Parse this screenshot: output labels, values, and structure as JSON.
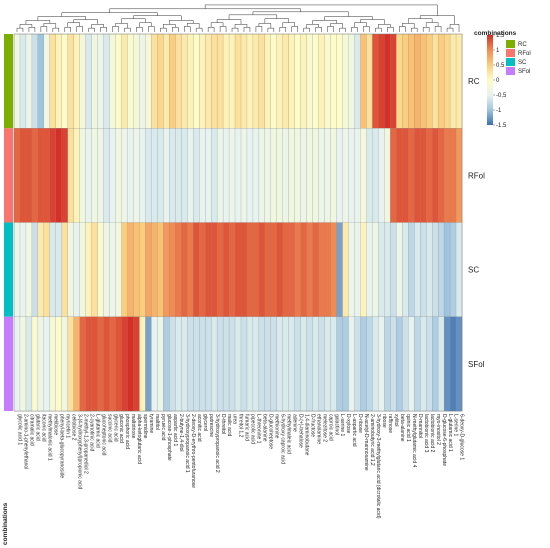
{
  "chart_data": {
    "type": "heatmap",
    "annotation_title": "combinations",
    "legend_title": "combinations",
    "rows": [
      "RC",
      "RFol",
      "SC",
      "SFol"
    ],
    "row_colors": {
      "RC": "#7cae00",
      "RFol": "#f8766d",
      "SC": "#00bfc4",
      "SFol": "#c77cff"
    },
    "colorscale": [
      "#3d6fb0",
      "#9fc4de",
      "#e8f3f0",
      "#fdfcc8",
      "#fbce7d",
      "#f08b52",
      "#d62f27"
    ],
    "zlim": [
      -1.5,
      1.5
    ],
    "colorbar_ticks": [
      "1.5",
      "1",
      "0.5",
      "0",
      "-0.5",
      "-1",
      "-1.5"
    ],
    "dendrogram": "top",
    "columns": [
      "glycolic acid 1",
      "2-amino-1-phenylethanol",
      "citramalic acid",
      "glutaric acid",
      "itaconic acid",
      "methylmalonic acid 1",
      "melibiose",
      "phenyl-beta-glucopyranoside",
      "myricetin 1",
      "cellobiose 2",
      "3-(4-hydroxyphenyl)propionic acid",
      "2-methyl-1,3-propanediol 2",
      "2-cyanotinic acid",
      "L-glutamic acid",
      "glucoheptonic acid",
      "succinic acid",
      "glyceric acid",
      "gluconic acid",
      "phosphoric acid",
      "maltotriose",
      "alpha-ketoglutaric acid",
      "spermidine",
      "tyramine",
      "maltitol",
      "pyruvic acid",
      "glucose-1-phosphate",
      "aspartic acid 1",
      "2-butyne-1,4-diol",
      "3-hydroxypropanoic acid 1",
      "2-deoxy-D-erythro-pentofuranose",
      "aconitic acid",
      "glycerol",
      "putrescine",
      "3-hydroxypropanoic acid 2",
      "D-threitol",
      "malic acid",
      "urea",
      "threitol 1,2",
      "fumaric acid",
      "pipecolic acid",
      "L-threonine 1",
      "beta-alanine",
      "D-glucoheptose",
      "methionine",
      "6-hydroxy caproic acid",
      "methylmaleic acid",
      "adenine",
      "D-(+)-trehalose",
      "1,4-diaminobutane",
      "D-fructose",
      "ethanolamine",
      "melezitose 2",
      "caproic acid",
      "galactinol",
      "L-serine 1",
      "D-xylose",
      "L-aspartic acid",
      "D-ribose",
      "N-acetyl-D-mannosamine",
      "2-aminobutyric acid 1,2",
      "3-hydroxy-3-methylglutaric acid (dicrotalic acid)",
      "ribose",
      "raffinose",
      "xylitol",
      "beta-alanine",
      "quinic acid 1",
      "N-methylglutamic acid 4",
      "D-mannitol",
      "lactobionic acid 3",
      "lactobionic acid 2",
      "myo-inositol 2",
      "D-glucose-6-phosphate",
      "L-glutamic acid 1",
      "L-serine 1",
      "6-deoxy-D-glucose 1"
    ],
    "values": [
      [
        -0.3,
        -0.6,
        -0.4,
        -0.7,
        -1.0,
        -0.3,
        0.3,
        0.1,
        0.0,
        0.3,
        0.1,
        -0.2,
        -0.6,
        -0.3,
        -0.4,
        -0.6,
        -0.2,
        0.0,
        0.2,
        -0.1,
        -0.2,
        -0.4,
        -0.2,
        0.3,
        0.4,
        0.2,
        0.5,
        0.3,
        0.2,
        0.1,
        0.0,
        0.1,
        0.2,
        0.3,
        0.3,
        0.1,
        0.1,
        0.3,
        0.2,
        0.1,
        0.2,
        0.3,
        0.1,
        0.0,
        0.1,
        0.2,
        0.1,
        0.0,
        0.1,
        -0.1,
        0.0,
        0.1,
        -0.1,
        0.0,
        0.0,
        -0.2,
        -0.3,
        -0.6,
        0.6,
        0.3,
        1.3,
        1.4,
        1.5,
        1.4,
        0.4,
        0.5,
        0.6,
        0.7,
        0.6,
        0.5,
        0.3,
        0.5,
        0.4,
        0.2,
        0.2
      ],
      [
        1.2,
        1.3,
        1.3,
        1.2,
        1.3,
        1.3,
        1.4,
        1.5,
        1.4,
        0.3,
        0.1,
        -0.3,
        -0.5,
        -0.3,
        -0.4,
        -0.6,
        -0.5,
        -0.3,
        -0.4,
        -0.5,
        -0.4,
        -0.5,
        -0.6,
        -0.6,
        -0.6,
        -0.5,
        -0.6,
        -0.6,
        -0.6,
        -0.5,
        -0.6,
        -0.5,
        -0.5,
        -0.6,
        -0.4,
        -0.5,
        -0.4,
        -0.5,
        -0.4,
        -0.5,
        -0.5,
        -0.4,
        -0.4,
        -0.3,
        -0.3,
        -0.4,
        -0.3,
        -0.3,
        -0.4,
        -0.3,
        -0.3,
        -0.4,
        -0.4,
        -0.3,
        -0.5,
        -0.4,
        -0.5,
        -0.5,
        -0.2,
        -0.6,
        -0.6,
        -0.5,
        -0.3,
        1.2,
        1.3,
        1.3,
        1.2,
        1.3,
        1.3,
        1.2,
        1.3,
        1.2,
        1.1,
        1.1,
        0.9
      ],
      [
        -0.4,
        -0.5,
        -0.3,
        -0.7,
        0.2,
        0.3,
        -0.6,
        -0.6,
        0.3,
        -0.3,
        -0.5,
        -0.3,
        0.1,
        0.3,
        -0.1,
        -0.4,
        -0.4,
        -0.3,
        0.5,
        0.7,
        0.6,
        0.5,
        0.8,
        0.7,
        0.6,
        0.9,
        1.0,
        1.1,
        1.2,
        1.1,
        1.3,
        1.2,
        1.3,
        1.3,
        1.2,
        1.3,
        1.2,
        1.3,
        1.3,
        1.2,
        1.2,
        1.3,
        1.2,
        1.2,
        1.3,
        1.2,
        1.2,
        1.1,
        1.2,
        1.1,
        1.2,
        1.1,
        1.1,
        1.0,
        -1.2,
        0.2,
        -0.4,
        -0.5,
        0.1,
        -0.5,
        -0.4,
        -0.6,
        -0.6,
        -0.7,
        -0.4,
        -0.6,
        -0.8,
        -0.6,
        -0.7,
        -0.6,
        -0.7,
        -0.8,
        -1.0,
        -0.9,
        -0.6
      ],
      [
        -0.5,
        -0.3,
        -0.6,
        -0.1,
        -0.4,
        -0.5,
        -0.2,
        0.0,
        -0.3,
        0.3,
        0.7,
        1.2,
        1.3,
        1.3,
        1.2,
        1.3,
        1.2,
        1.3,
        1.4,
        1.5,
        1.4,
        0.1,
        -1.2,
        -0.5,
        -0.4,
        -0.9,
        -0.7,
        -0.6,
        -0.6,
        -0.7,
        -0.7,
        -0.7,
        -0.7,
        -0.6,
        -0.7,
        -0.7,
        -0.7,
        -0.6,
        -0.7,
        -0.6,
        -0.6,
        -0.7,
        -0.7,
        -0.7,
        -0.6,
        -0.6,
        -0.6,
        -0.7,
        -0.6,
        -0.7,
        -0.6,
        -0.7,
        -0.6,
        -0.6,
        -0.9,
        -0.9,
        -0.5,
        -0.7,
        -0.9,
        -0.8,
        -0.6,
        -0.5,
        -0.8,
        -0.7,
        -0.9,
        -0.7,
        -0.5,
        -0.8,
        -0.6,
        -0.7,
        -0.9,
        -0.6,
        -1.3,
        -1.4,
        -1.3
      ]
    ]
  }
}
